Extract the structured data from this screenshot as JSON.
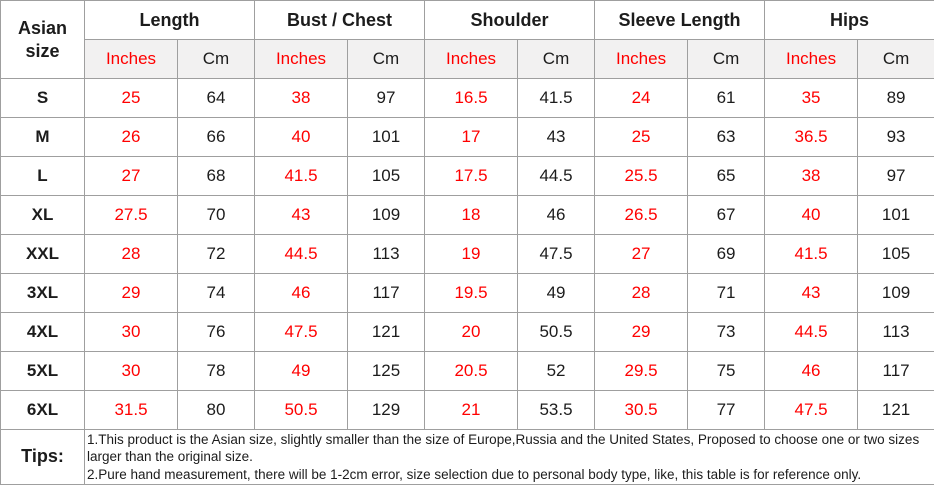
{
  "colors": {
    "accent_red": "#ff0000",
    "text_black": "#1c1c1c",
    "border_gray": "#9f9f9f",
    "unit_row_bg": "#f2f1f1"
  },
  "table": {
    "corner_header": "Asian size",
    "groups": [
      {
        "label": "Length"
      },
      {
        "label": "Bust / Chest"
      },
      {
        "label": "Shoulder"
      },
      {
        "label": "Sleeve Length"
      },
      {
        "label": "Hips"
      }
    ],
    "units": {
      "inches": "Inches",
      "cm": "Cm"
    },
    "rows": [
      {
        "size": "S",
        "values": [
          "25",
          "64",
          "38",
          "97",
          "16.5",
          "41.5",
          "24",
          "61",
          "35",
          "89"
        ]
      },
      {
        "size": "M",
        "values": [
          "26",
          "66",
          "40",
          "101",
          "17",
          "43",
          "25",
          "63",
          "36.5",
          "93"
        ]
      },
      {
        "size": "L",
        "values": [
          "27",
          "68",
          "41.5",
          "105",
          "17.5",
          "44.5",
          "25.5",
          "65",
          "38",
          "97"
        ]
      },
      {
        "size": "XL",
        "values": [
          "27.5",
          "70",
          "43",
          "109",
          "18",
          "46",
          "26.5",
          "67",
          "40",
          "101"
        ]
      },
      {
        "size": "XXL",
        "values": [
          "28",
          "72",
          "44.5",
          "113",
          "19",
          "47.5",
          "27",
          "69",
          "41.5",
          "105"
        ]
      },
      {
        "size": "3XL",
        "values": [
          "29",
          "74",
          "46",
          "117",
          "19.5",
          "49",
          "28",
          "71",
          "43",
          "109"
        ]
      },
      {
        "size": "4XL",
        "values": [
          "30",
          "76",
          "47.5",
          "121",
          "20",
          "50.5",
          "29",
          "73",
          "44.5",
          "113"
        ]
      },
      {
        "size": "5XL",
        "values": [
          "30",
          "78",
          "49",
          "125",
          "20.5",
          "52",
          "29.5",
          "75",
          "46",
          "117"
        ]
      },
      {
        "size": "6XL",
        "values": [
          "31.5",
          "80",
          "50.5",
          "129",
          "21",
          "53.5",
          "30.5",
          "77",
          "47.5",
          "121"
        ]
      }
    ],
    "tips": {
      "label": "Tips:",
      "lines": [
        "1.This product is the Asian size, slightly smaller than the size of Europe,Russia and the United States, Proposed to choose one or two sizes larger than the original size.",
        "2.Pure hand measurement, there will be 1-2cm error, size selection due to personal body type, like, this table is for reference only."
      ]
    }
  }
}
